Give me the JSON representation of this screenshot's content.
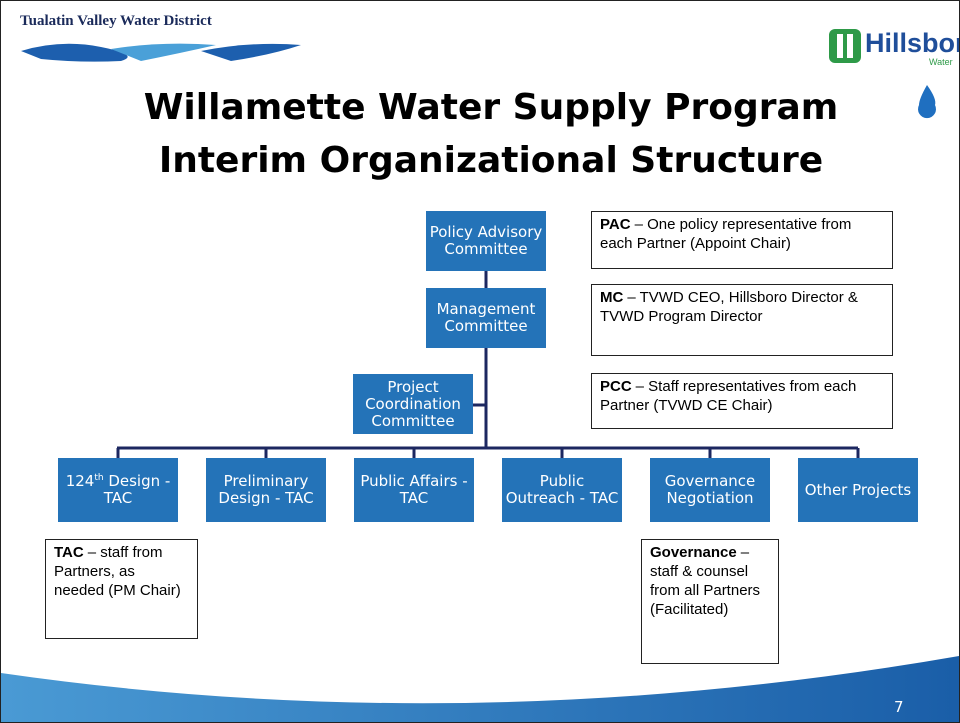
{
  "header": {
    "left_logo": "Tualatin Valley Water District",
    "right_logo": "Hillsboro",
    "right_logo_sub": "Water"
  },
  "title": [
    "Willamette Water Supply Program",
    "Interim Organizational Structure"
  ],
  "nodes": [
    {
      "label": "Policy Advisory Committee"
    },
    {
      "label": "Management Committee"
    },
    {
      "label": "Project Coordination Committee"
    },
    {
      "label": "124",
      "sup": "th",
      "rest": " Design - TAC"
    },
    {
      "label": "Preliminary Design - TAC"
    },
    {
      "label": "Public Affairs - TAC"
    },
    {
      "label": "Public Outreach - TAC"
    },
    {
      "label": "Governance Negotiation"
    },
    {
      "label": "Other Projects"
    }
  ],
  "notes": [
    {
      "term": "PAC",
      "text": "– One policy representative from each Partner (Appoint Chair)"
    },
    {
      "term": "MC",
      "text": "– TVWD CEO, Hillsboro Director & TVWD Program Director"
    },
    {
      "term": "PCC",
      "text": "– Staff representatives from each Partner (TVWD CE Chair)"
    },
    {
      "term": "TAC",
      "text": "– staff from Partners, as needed (PM Chair)"
    },
    {
      "term": "Governance",
      "text": "– staff & counsel from all Partners (Facilitated)"
    }
  ],
  "page_number": "7"
}
